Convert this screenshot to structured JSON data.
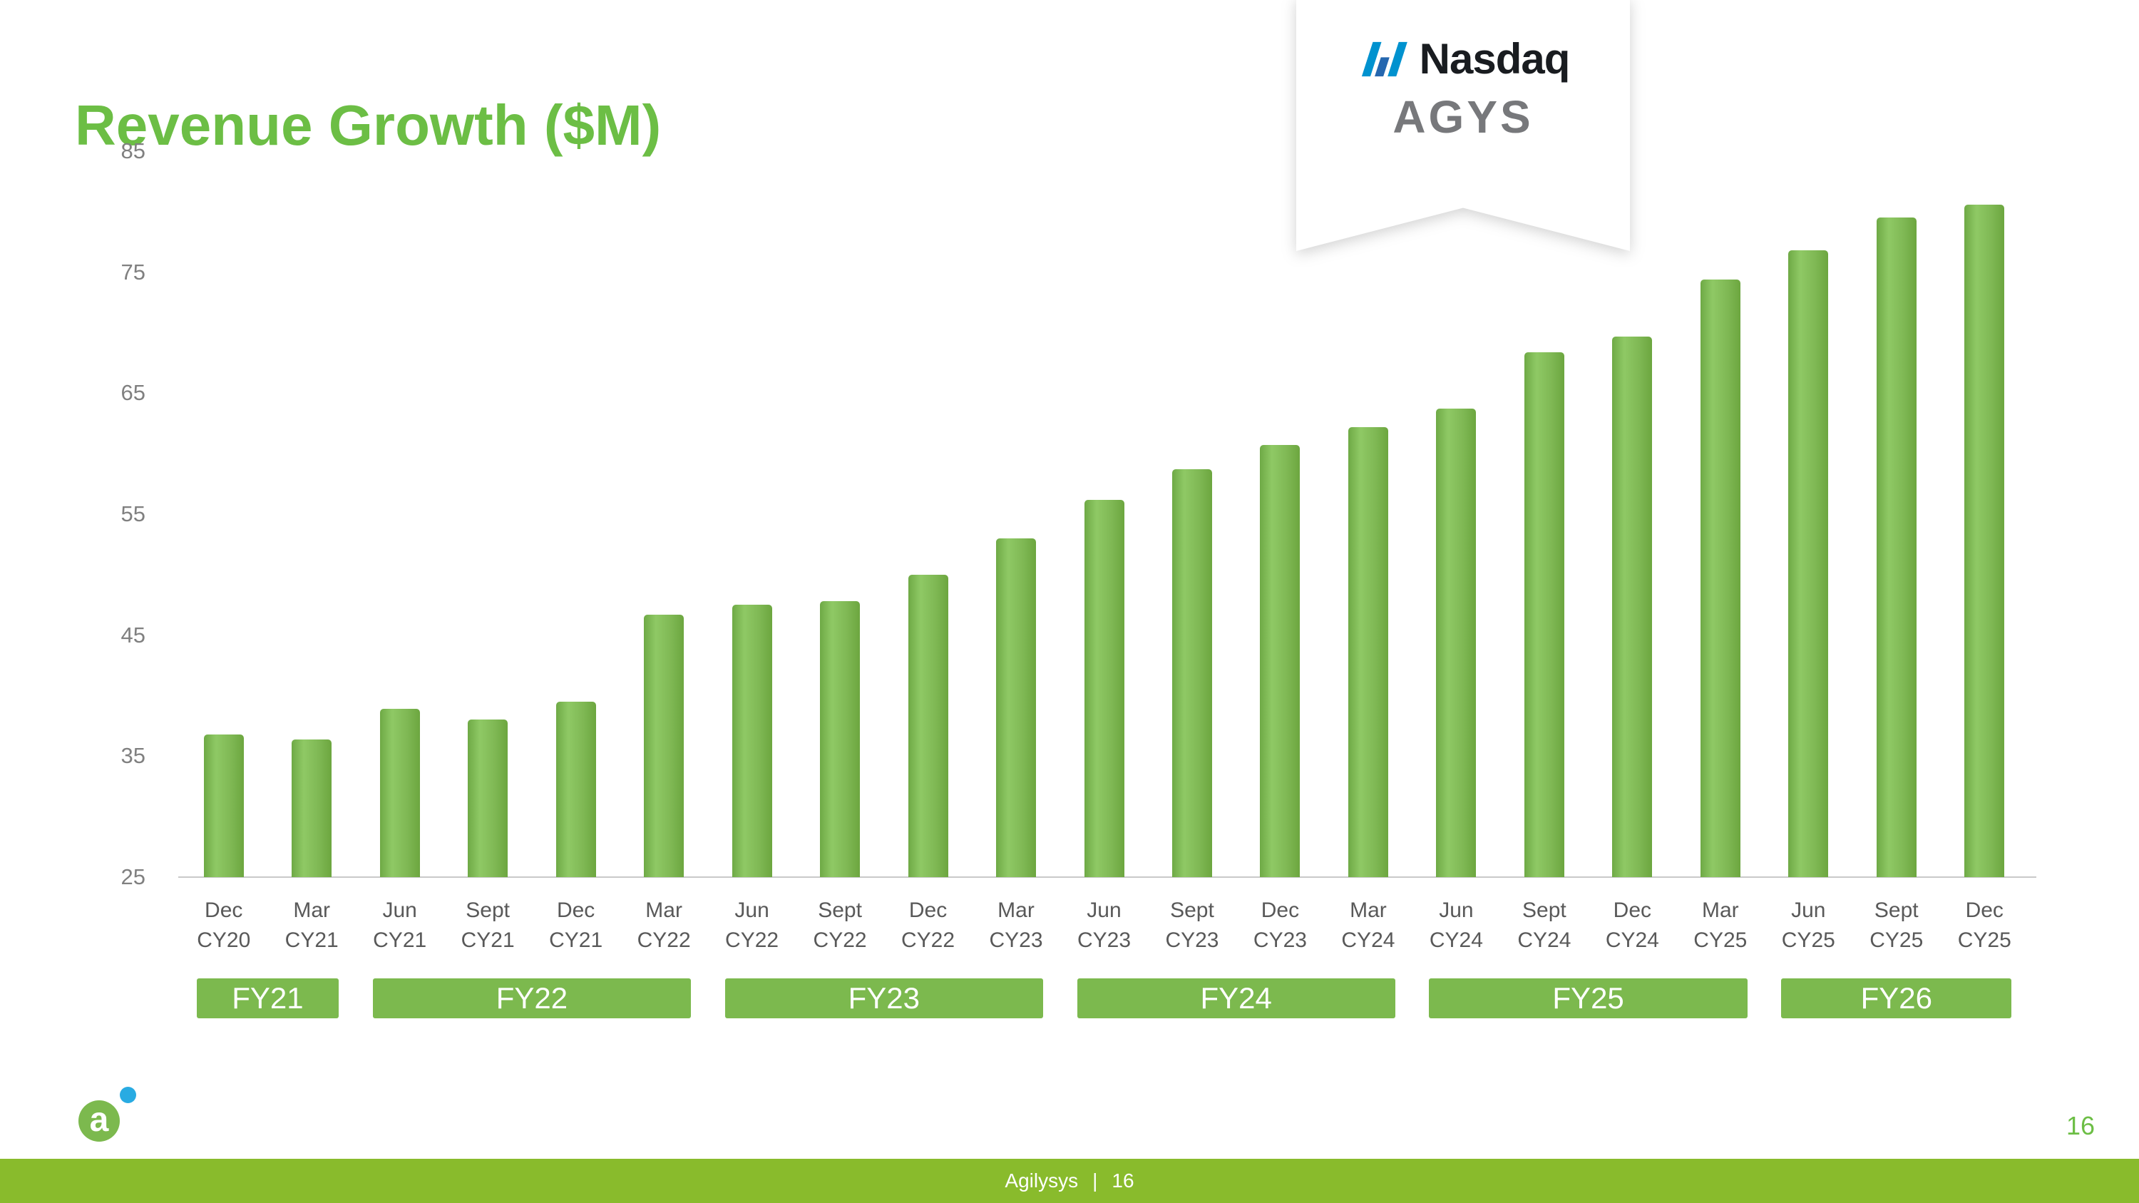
{
  "slide": {
    "title": "Revenue Growth ($M)",
    "page_number": "16"
  },
  "badge": {
    "exchange": "Nasdaq",
    "ticker": "AGYS"
  },
  "footer": {
    "brand": "Agilysys",
    "separator": "|",
    "page": "16"
  },
  "logo": {
    "letter": "a"
  },
  "colors": {
    "title_green": "#6CBE45",
    "bar_green": "#7CB455",
    "band_green": "#7CB94E",
    "footer_green": "#89BB2C",
    "nasdaq_blue": "#0092CF",
    "nasdaq_blue_dark": "#2567AF",
    "ticker_gray": "#77787B",
    "axis_gray": "#808080",
    "label_gray": "#595959",
    "logo_blue": "#29ABE2"
  },
  "chart_data": {
    "type": "bar",
    "title": "Revenue Growth ($M)",
    "xlabel": "",
    "ylabel": "",
    "ylim": [
      25,
      85
    ],
    "yticks": [
      25,
      35,
      45,
      55,
      65,
      75,
      85
    ],
    "grid": false,
    "legend": "none",
    "bar_color": "#7CB455",
    "categories": [
      [
        "Dec",
        "CY20"
      ],
      [
        "Mar",
        "CY21"
      ],
      [
        "Jun",
        "CY21"
      ],
      [
        "Sept",
        "CY21"
      ],
      [
        "Dec",
        "CY21"
      ],
      [
        "Mar",
        "CY22"
      ],
      [
        "Jun",
        "CY22"
      ],
      [
        "Sept",
        "CY22"
      ],
      [
        "Dec",
        "CY22"
      ],
      [
        "Mar",
        "CY23"
      ],
      [
        "Jun",
        "CY23"
      ],
      [
        "Sept",
        "CY23"
      ],
      [
        "Dec",
        "CY23"
      ],
      [
        "Mar",
        "CY24"
      ],
      [
        "Jun",
        "CY24"
      ],
      [
        "Sept",
        "CY24"
      ],
      [
        "Dec",
        "CY24"
      ],
      [
        "Mar",
        "CY25"
      ],
      [
        "Jun",
        "CY25"
      ],
      [
        "Sept",
        "CY25"
      ],
      [
        "Dec",
        "CY25"
      ]
    ],
    "values": [
      36.8,
      36.4,
      38.9,
      38.0,
      39.5,
      46.7,
      47.5,
      47.8,
      50.0,
      53.0,
      56.2,
      58.7,
      60.7,
      62.2,
      63.7,
      68.4,
      69.7,
      74.4,
      76.8,
      79.5,
      80.6
    ],
    "fiscal_year_bands": [
      {
        "label": "FY21",
        "start_index": 0,
        "end_index": 1
      },
      {
        "label": "FY22",
        "start_index": 2,
        "end_index": 5
      },
      {
        "label": "FY23",
        "start_index": 6,
        "end_index": 9
      },
      {
        "label": "FY24",
        "start_index": 10,
        "end_index": 13
      },
      {
        "label": "FY25",
        "start_index": 14,
        "end_index": 17
      },
      {
        "label": "FY26",
        "start_index": 18,
        "end_index": 20
      }
    ]
  }
}
